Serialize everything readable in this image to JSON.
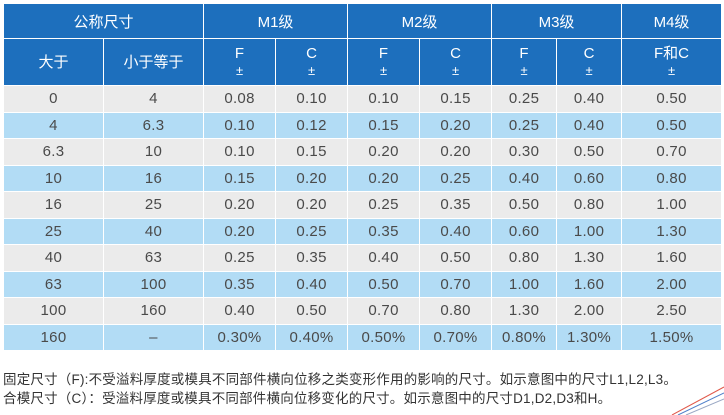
{
  "header": {
    "nominal": "公称尺寸",
    "grades": [
      "M1级",
      "M2级",
      "M3级",
      "M4级"
    ],
    "over": "大于",
    "upto": "小于等于",
    "cols": [
      {
        "sym": "F",
        "pm": "±"
      },
      {
        "sym": "C",
        "pm": "±"
      },
      {
        "sym": "F",
        "pm": "±"
      },
      {
        "sym": "C",
        "pm": "±"
      },
      {
        "sym": "F",
        "pm": "±"
      },
      {
        "sym": "C",
        "pm": "±"
      },
      {
        "sym": "F和C",
        "pm": "±"
      }
    ]
  },
  "rows": [
    [
      "0",
      "4",
      "0.08",
      "0.10",
      "0.10",
      "0.15",
      "0.25",
      "0.40",
      "0.50"
    ],
    [
      "4",
      "6.3",
      "0.10",
      "0.12",
      "0.15",
      "0.20",
      "0.25",
      "0.40",
      "0.50"
    ],
    [
      "6.3",
      "10",
      "0.10",
      "0.15",
      "0.20",
      "0.20",
      "0.30",
      "0.50",
      "0.70"
    ],
    [
      "10",
      "16",
      "0.15",
      "0.20",
      "0.20",
      "0.25",
      "0.40",
      "0.60",
      "0.80"
    ],
    [
      "16",
      "25",
      "0.20",
      "0.20",
      "0.25",
      "0.35",
      "0.50",
      "0.80",
      "1.00"
    ],
    [
      "25",
      "40",
      "0.20",
      "0.25",
      "0.35",
      "0.40",
      "0.60",
      "1.00",
      "1.30"
    ],
    [
      "40",
      "63",
      "0.25",
      "0.35",
      "0.40",
      "0.50",
      "0.80",
      "1.30",
      "1.60"
    ],
    [
      "63",
      "100",
      "0.35",
      "0.40",
      "0.50",
      "0.70",
      "1.00",
      "1.60",
      "2.00"
    ],
    [
      "100",
      "160",
      "0.40",
      "0.50",
      "0.70",
      "0.80",
      "1.30",
      "2.00",
      "2.50"
    ],
    [
      "160",
      "–",
      "0.30%",
      "0.40%",
      "0.50%",
      "0.70%",
      "0.80%",
      "1.30%",
      "1.50%"
    ]
  ],
  "notes": [
    "固定尺寸（F):不受溢料厚度或模具不同部件横向位移之类变形作用的影响的尺寸。如示意图中的尺寸L1,L2,L3。",
    "合模尺寸（C）：受溢料厚度或模具不同部件横向位移变化的尺寸。如示意图中的尺寸D1,D2,D3和H。"
  ],
  "colors": {
    "header_bg": "#1d6fbd",
    "row_gray": "#ebebeb",
    "row_blue": "#b2dcf5",
    "text": "#4a4a4a"
  }
}
